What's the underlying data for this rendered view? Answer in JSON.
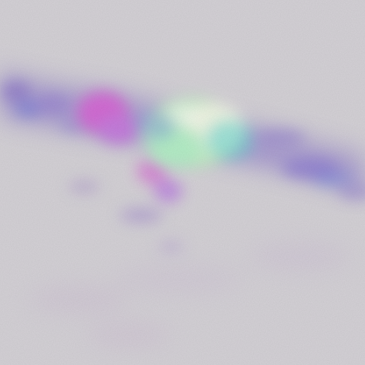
{
  "image": {
    "kind": "abstract-texture",
    "palette": {
      "background": "#d6d3d8",
      "band": "#b7acd0",
      "violet": "#8f79c9",
      "magenta": "#d66ad6",
      "blue": "#5e7fe0",
      "cyan": "#62d6cf",
      "mint": "#c8f1c6",
      "pale": "#f2f7e6"
    }
  }
}
